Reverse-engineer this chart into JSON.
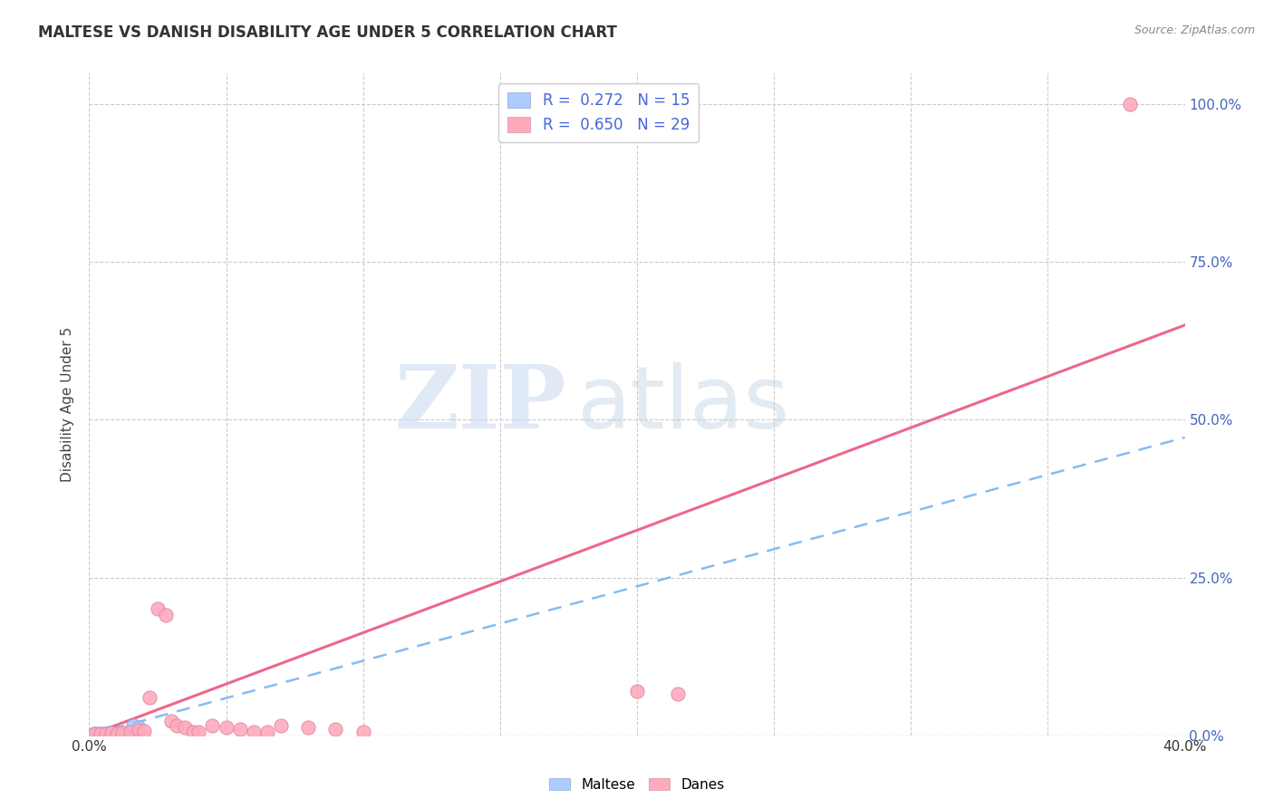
{
  "title": "MALTESE VS DANISH DISABILITY AGE UNDER 5 CORRELATION CHART",
  "source_text": "Source: ZipAtlas.com",
  "ylabel": "Disability Age Under 5",
  "xlim": [
    0.0,
    0.4
  ],
  "ylim": [
    0.0,
    1.05
  ],
  "xticks": [
    0.0,
    0.4
  ],
  "xtick_labels": [
    "0.0%",
    "40.0%"
  ],
  "yticks_right": [
    0.0,
    0.25,
    0.5,
    0.75,
    1.0
  ],
  "ytick_labels_right": [
    "0.0%",
    "25.0%",
    "50.0%",
    "75.0%",
    "100.0%"
  ],
  "grid_yticks": [
    0.0,
    0.25,
    0.5,
    0.75,
    1.0
  ],
  "grid_xticks": [
    0.0,
    0.05,
    0.1,
    0.15,
    0.2,
    0.25,
    0.3,
    0.35,
    0.4
  ],
  "maltese_color": "#aaccff",
  "danes_color": "#ffaabb",
  "maltese_R": 0.272,
  "maltese_N": 15,
  "danes_R": 0.65,
  "danes_N": 29,
  "grid_color": "#cccccc",
  "background_color": "#ffffff",
  "maltese_points_x": [
    0.002,
    0.003,
    0.004,
    0.005,
    0.006,
    0.007,
    0.008,
    0.009,
    0.01,
    0.011,
    0.012,
    0.013,
    0.014,
    0.016,
    0.018
  ],
  "maltese_points_y": [
    0.003,
    0.002,
    0.003,
    0.002,
    0.003,
    0.004,
    0.003,
    0.002,
    0.003,
    0.004,
    0.002,
    0.003,
    0.004,
    0.015,
    0.012
  ],
  "danes_points_x": [
    0.002,
    0.004,
    0.006,
    0.008,
    0.01,
    0.012,
    0.015,
    0.018,
    0.02,
    0.022,
    0.025,
    0.028,
    0.03,
    0.032,
    0.035,
    0.038,
    0.04,
    0.045,
    0.05,
    0.055,
    0.06,
    0.065,
    0.07,
    0.08,
    0.09,
    0.1,
    0.2,
    0.215,
    0.38
  ],
  "danes_points_y": [
    0.002,
    0.003,
    0.003,
    0.004,
    0.003,
    0.004,
    0.005,
    0.008,
    0.007,
    0.06,
    0.2,
    0.19,
    0.022,
    0.016,
    0.012,
    0.006,
    0.006,
    0.015,
    0.013,
    0.01,
    0.005,
    0.005,
    0.015,
    0.012,
    0.01,
    0.005,
    0.07,
    0.065,
    1.0
  ],
  "maltese_line_slope": 1.18,
  "maltese_line_intercept": 0.0,
  "danes_line_slope": 1.625,
  "danes_line_intercept": 0.0,
  "watermark_zip_color": "#c8d8f0",
  "watermark_atlas_color": "#b8cce0",
  "legend_R_color": "#4466dd",
  "legend_N_color": "#4466dd",
  "legend_text_color": "#333333",
  "right_axis_color": "#4466bb",
  "title_color": "#333333",
  "source_color": "#888888"
}
